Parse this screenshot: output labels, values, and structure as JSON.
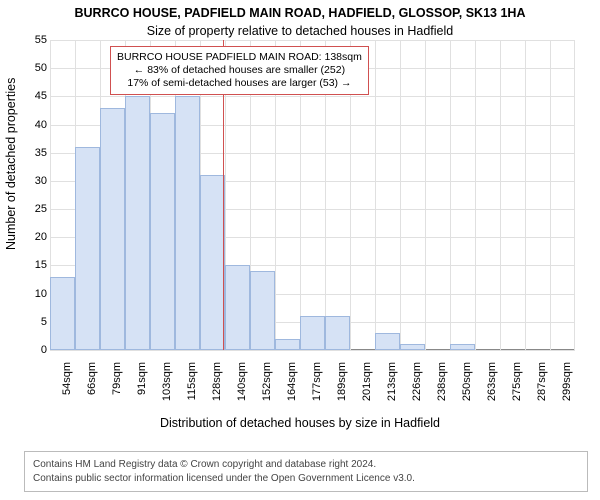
{
  "title": "BURRCO HOUSE, PADFIELD MAIN ROAD, HADFIELD, GLOSSOP, SK13 1HA",
  "subtitle": "Size of property relative to detached houses in Hadfield",
  "y_axis_label": "Number of detached properties",
  "x_axis_label": "Distribution of detached houses by size in Hadfield",
  "footer_line1": "Contains HM Land Registry data © Crown copyright and database right 2024.",
  "footer_line2": "Contains public sector information licensed under the Open Government Licence v3.0.",
  "chart": {
    "type": "histogram",
    "ylim": [
      0,
      55
    ],
    "ytick_step": 5,
    "background_color": "#ffffff",
    "grid_color": "#e0e0e0",
    "bar_fill": "#d6e2f5",
    "bar_border": "#9fb8de",
    "marker_color": "#d05050",
    "categories": [
      "54sqm",
      "66sqm",
      "79sqm",
      "91sqm",
      "103sqm",
      "115sqm",
      "128sqm",
      "140sqm",
      "152sqm",
      "164sqm",
      "177sqm",
      "189sqm",
      "201sqm",
      "213sqm",
      "226sqm",
      "238sqm",
      "250sqm",
      "263sqm",
      "275sqm",
      "287sqm",
      "299sqm"
    ],
    "values": [
      13,
      36,
      43,
      45,
      42,
      45,
      31,
      15,
      14,
      2,
      6,
      6,
      0,
      3,
      1,
      0,
      1,
      0,
      0,
      0,
      0
    ],
    "marker_x_index": 7,
    "callout": {
      "line1": "BURRCO HOUSE PADFIELD MAIN ROAD: 138sqm",
      "line2": "← 83% of detached houses are smaller (252)",
      "line3": "17% of semi-detached houses are larger (53) →"
    },
    "label_fontsize": 11,
    "title_fontsize": 12
  }
}
